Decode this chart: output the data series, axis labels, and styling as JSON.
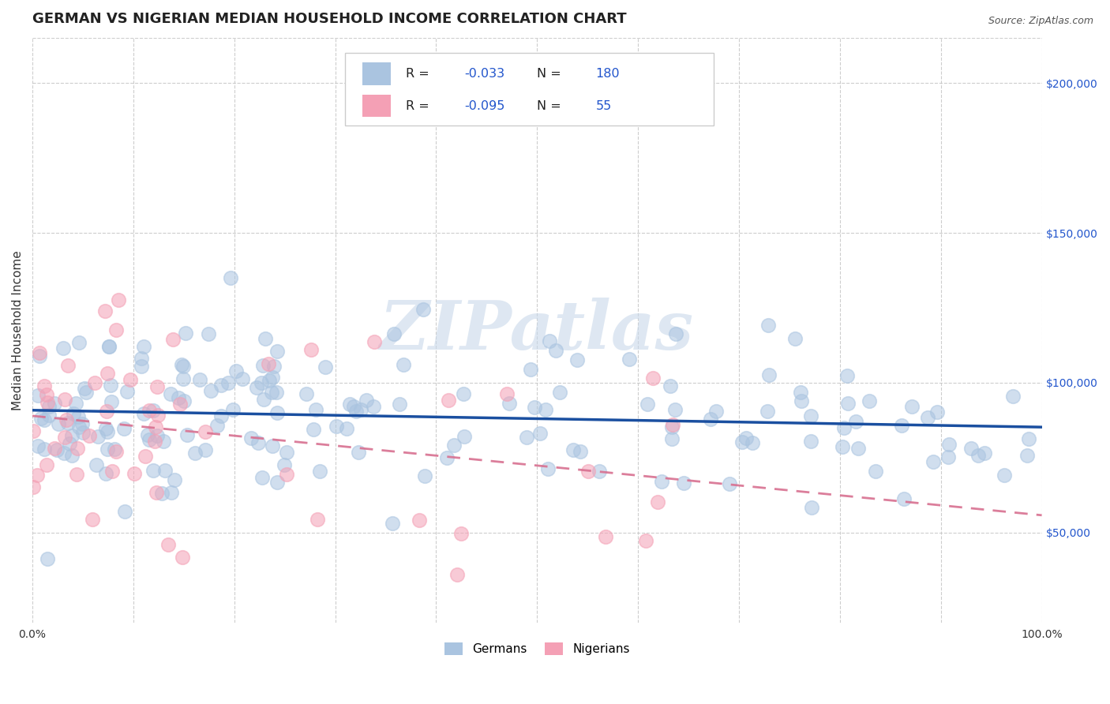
{
  "title": "GERMAN VS NIGERIAN MEDIAN HOUSEHOLD INCOME CORRELATION CHART",
  "source": "Source: ZipAtlas.com",
  "ylabel": "Median Household Income",
  "xlim": [
    0.0,
    1.0
  ],
  "ylim": [
    20000,
    215000
  ],
  "xticks": [
    0.0,
    0.1,
    0.2,
    0.3,
    0.4,
    0.5,
    0.6,
    0.7,
    0.8,
    0.9,
    1.0
  ],
  "xticklabels": [
    "0.0%",
    "",
    "",
    "",
    "",
    "",
    "",
    "",
    "",
    "",
    "100.0%"
  ],
  "yticks": [
    50000,
    100000,
    150000,
    200000
  ],
  "yticklabels": [
    "$50,000",
    "$100,000",
    "$150,000",
    "$200,000"
  ],
  "german_color": "#aac4e0",
  "nigerian_color": "#f4a0b5",
  "german_line_color": "#1a4fa0",
  "nigerian_line_color": "#d04060",
  "nigerian_line_color_dashed": "#d87090",
  "german_R": -0.033,
  "german_N": 180,
  "nigerian_R": -0.095,
  "nigerian_N": 55,
  "watermark_text": "ZIPatlas",
  "background_color": "#ffffff",
  "grid_color": "#c8c8c8",
  "legend_label_german": "Germans",
  "legend_label_nigerian": "Nigerians",
  "title_fontsize": 13,
  "axis_label_fontsize": 11,
  "tick_fontsize": 10,
  "legend_r_color": "#2255cc",
  "legend_n_color": "#2255cc",
  "legend_text_color": "#222222"
}
